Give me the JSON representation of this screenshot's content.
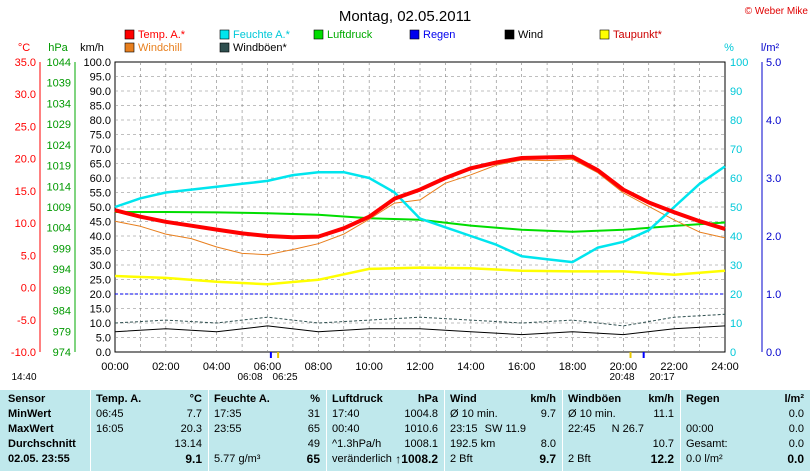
{
  "title": "Montag, 02.05.2011",
  "copyright": "© Weber Mike",
  "units": {
    "temp": "°C",
    "pressure": "hPa",
    "wind": "km/h",
    "humidity": "%",
    "rain": "l/m²"
  },
  "colors": {
    "temp": "#ff0000",
    "windchill": "#e87f1e",
    "humidity": "#00e5ee",
    "windgust": "#2f4f4f",
    "pressure": "#00dd00",
    "rain": "#0000ee",
    "wind": "#000000",
    "dewpoint": "#ffff00",
    "panel": "#bfe8ec",
    "grid": "#808080"
  },
  "legend": [
    {
      "label": "Temp. A.*",
      "color": "#ff0000"
    },
    {
      "label": "Windchill",
      "color": "#e87f1e"
    },
    {
      "label": "Feuchte A.*",
      "color": "#00e5ee"
    },
    {
      "label": "Windböen*",
      "color": "#2f4f4f"
    },
    {
      "label": "Luftdruck",
      "color": "#00dd00"
    },
    {
      "label": "Regen",
      "color": "#0000ee"
    },
    {
      "label": "Wind",
      "color": "#000000"
    },
    {
      "label": "Taupunkt*",
      "color": "#ffff00"
    }
  ],
  "chart_data": {
    "type": "line",
    "title": "Montag, 02.05.2011",
    "xlim": [
      "00:00",
      "24:00"
    ],
    "xticks": [
      "00:00",
      "02:00",
      "04:00",
      "06:00",
      "08:00",
      "10:00",
      "12:00",
      "14:00",
      "16:00",
      "18:00",
      "20:00",
      "22:00",
      "24:00"
    ],
    "axes": {
      "temp": {
        "label": "°C",
        "range": [
          -10,
          35
        ],
        "ticks": [
          "35.0",
          "30.0",
          "25.0",
          "20.0",
          "15.0",
          "10.0",
          "5.0",
          "0.0",
          "-5.0",
          "-10.0"
        ]
      },
      "pressure": {
        "label": "hPa",
        "range": [
          974,
          1049
        ],
        "ticks": [
          "1044",
          "1039",
          "1034",
          "1029",
          "1024",
          "1019",
          "1014",
          "1009",
          "1004",
          "999",
          "994",
          "989",
          "984",
          "979",
          "974"
        ]
      },
      "wind": {
        "label": "km/h",
        "range": [
          0,
          100
        ],
        "ticks": [
          "100.0",
          "95.0",
          "90.0",
          "85.0",
          "80.0",
          "75.0",
          "70.0",
          "65.0",
          "60.0",
          "55.0",
          "50.0",
          "45.0",
          "40.0",
          "35.0",
          "30.0",
          "25.0",
          "20.0",
          "15.0",
          "10.0",
          "5.0",
          "0.0"
        ]
      },
      "humidity": {
        "label": "%",
        "range": [
          0,
          100
        ],
        "ticks": [
          "100",
          "90",
          "80",
          "70",
          "60",
          "50",
          "40",
          "30",
          "20",
          "10",
          "0"
        ]
      },
      "rain": {
        "label": "l/m²",
        "range": [
          0,
          5
        ],
        "ticks": [
          "5.0",
          "4.0",
          "3.0",
          "2.0",
          "1.0",
          "0.0"
        ]
      }
    },
    "series": [
      {
        "name": "Temp. A.*",
        "axis": "temp",
        "x": [
          0,
          1,
          2,
          3,
          4,
          5,
          6,
          7,
          8,
          9,
          10,
          11,
          12,
          13,
          14,
          15,
          16,
          17,
          18,
          19,
          20,
          21,
          22,
          23,
          24
        ],
        "values": [
          12.0,
          11.0,
          10.2,
          9.6,
          9.0,
          8.4,
          8.0,
          7.8,
          7.9,
          9.2,
          11.0,
          13.8,
          15.2,
          17.0,
          18.5,
          19.4,
          20.1,
          20.2,
          20.3,
          18.2,
          15.2,
          13.2,
          11.7,
          10.3,
          9.1
        ]
      },
      {
        "name": "Windchill",
        "axis": "temp",
        "x": [
          0,
          1,
          2,
          3,
          4,
          5,
          6,
          7,
          8,
          9,
          10,
          11,
          12,
          13,
          14,
          15,
          16,
          17,
          18,
          19,
          20,
          21,
          22,
          23,
          24
        ],
        "values": [
          10.3,
          9.5,
          8.3,
          7.6,
          6.3,
          5.3,
          5.1,
          5.9,
          6.8,
          8.3,
          10.6,
          13.1,
          13.6,
          16.2,
          17.5,
          19.0,
          19.8,
          19.7,
          19.9,
          17.8,
          14.7,
          12.6,
          10.5,
          8.6,
          7.7
        ]
      },
      {
        "name": "Feuchte A.*",
        "axis": "humidity",
        "x": [
          0,
          1,
          2,
          3,
          4,
          5,
          6,
          7,
          8,
          9,
          10,
          11,
          12,
          13,
          14,
          15,
          16,
          17,
          18,
          19,
          20,
          21,
          22,
          23,
          24
        ],
        "values": [
          50,
          53,
          55,
          56,
          57,
          58,
          59,
          61,
          62,
          62,
          60,
          55,
          46,
          43,
          40,
          37,
          33,
          32,
          31,
          36,
          38,
          42,
          50,
          58,
          64
        ]
      },
      {
        "name": "Luftdruck",
        "axis": "pressure",
        "x": [
          0,
          2,
          4,
          6,
          8,
          10,
          12,
          14,
          16,
          18,
          20,
          22,
          24
        ],
        "values": [
          1010.2,
          1010.2,
          1010.1,
          1009.9,
          1009.5,
          1008.6,
          1008.2,
          1006.7,
          1005.6,
          1005.1,
          1005.6,
          1006.6,
          1007.5
        ]
      },
      {
        "name": "Taupunkt*",
        "axis": "temp",
        "x": [
          0,
          2,
          4,
          6,
          8,
          10,
          12,
          14,
          16,
          18,
          20,
          22,
          24
        ],
        "values": [
          1.8,
          1.5,
          0.9,
          0.5,
          1.2,
          2.9,
          3.1,
          3.0,
          2.6,
          2.5,
          2.5,
          2.0,
          2.6
        ]
      },
      {
        "name": "Wind",
        "axis": "wind",
        "x": [
          0,
          2,
          4,
          6,
          8,
          10,
          12,
          14,
          16,
          18,
          20,
          22,
          24
        ],
        "values": [
          7,
          8,
          7,
          9,
          7,
          8,
          8,
          7,
          6,
          7,
          6,
          8,
          9
        ]
      },
      {
        "name": "Windböen*",
        "axis": "wind",
        "x": [
          0,
          2,
          4,
          6,
          8,
          10,
          12,
          14,
          16,
          18,
          20,
          22,
          24
        ],
        "values": [
          10,
          11,
          10,
          12,
          10,
          11,
          12,
          11,
          10,
          11,
          9,
          12,
          13
        ]
      },
      {
        "name": "Regen",
        "axis": "rain",
        "x": [
          0,
          24
        ],
        "values": [
          1.0,
          1.0
        ]
      }
    ],
    "markers": [
      {
        "label": "06:08",
        "x": 6.133
      },
      {
        "label": "06:25",
        "x": 6.417
      },
      {
        "label": "20:48",
        "x": 20.8
      },
      {
        "label": "20:17",
        "x": 20.283
      },
      {
        "label": "14:40",
        "x": 14.667
      }
    ],
    "grid": true,
    "legend_position": "top"
  },
  "table": {
    "headers": {
      "sensor": "Sensor",
      "temp": "Temp. A.",
      "temp_unit": "°C",
      "hum": "Feuchte A.",
      "hum_unit": "%",
      "press": "Luftdruck",
      "press_unit": "hPa",
      "wind": "Wind",
      "wind_unit": "km/h",
      "gust": "Windböen",
      "gust_unit": "km/h",
      "rain": "Regen",
      "rain_unit": "l/m²"
    },
    "rows": {
      "labels": [
        "MinWert",
        "MaxWert",
        "Durchschnitt",
        "02.05. 23:55"
      ],
      "temp": [
        [
          "06:45",
          "7.7"
        ],
        [
          "16:05",
          "20.3"
        ],
        [
          "",
          "13.14"
        ],
        [
          "",
          "9.1"
        ]
      ],
      "hum": [
        [
          "17:35",
          "31"
        ],
        [
          "23:55",
          "65"
        ],
        [
          "",
          "49"
        ],
        [
          "5.77 g/m³",
          "65"
        ]
      ],
      "press": [
        [
          "17:40",
          "1004.8"
        ],
        [
          "00:40",
          "1010.6"
        ],
        [
          "^1.3hPa/h",
          "1008.1"
        ],
        [
          "veränderlich",
          "↑1008.2"
        ]
      ],
      "wind": [
        [
          "Ø 10 min.",
          "",
          "9.7"
        ],
        [
          "23:15",
          "SW 11.9",
          ""
        ],
        [
          "192.5 km",
          "",
          "8.0"
        ],
        [
          "2 Bft",
          "",
          "9.7"
        ]
      ],
      "gust": [
        [
          "Ø 10 min.",
          "",
          "11.1"
        ],
        [
          "22:45",
          "N 26.7",
          ""
        ],
        [
          "",
          "",
          "10.7"
        ],
        [
          "2 Bft",
          "",
          "12.2"
        ]
      ],
      "rain": [
        [
          "",
          "0.0"
        ],
        [
          "00:00",
          "0.0"
        ],
        [
          "Gesamt:",
          "0.0"
        ],
        [
          "0.0 l/m²",
          "0.0"
        ]
      ]
    }
  }
}
